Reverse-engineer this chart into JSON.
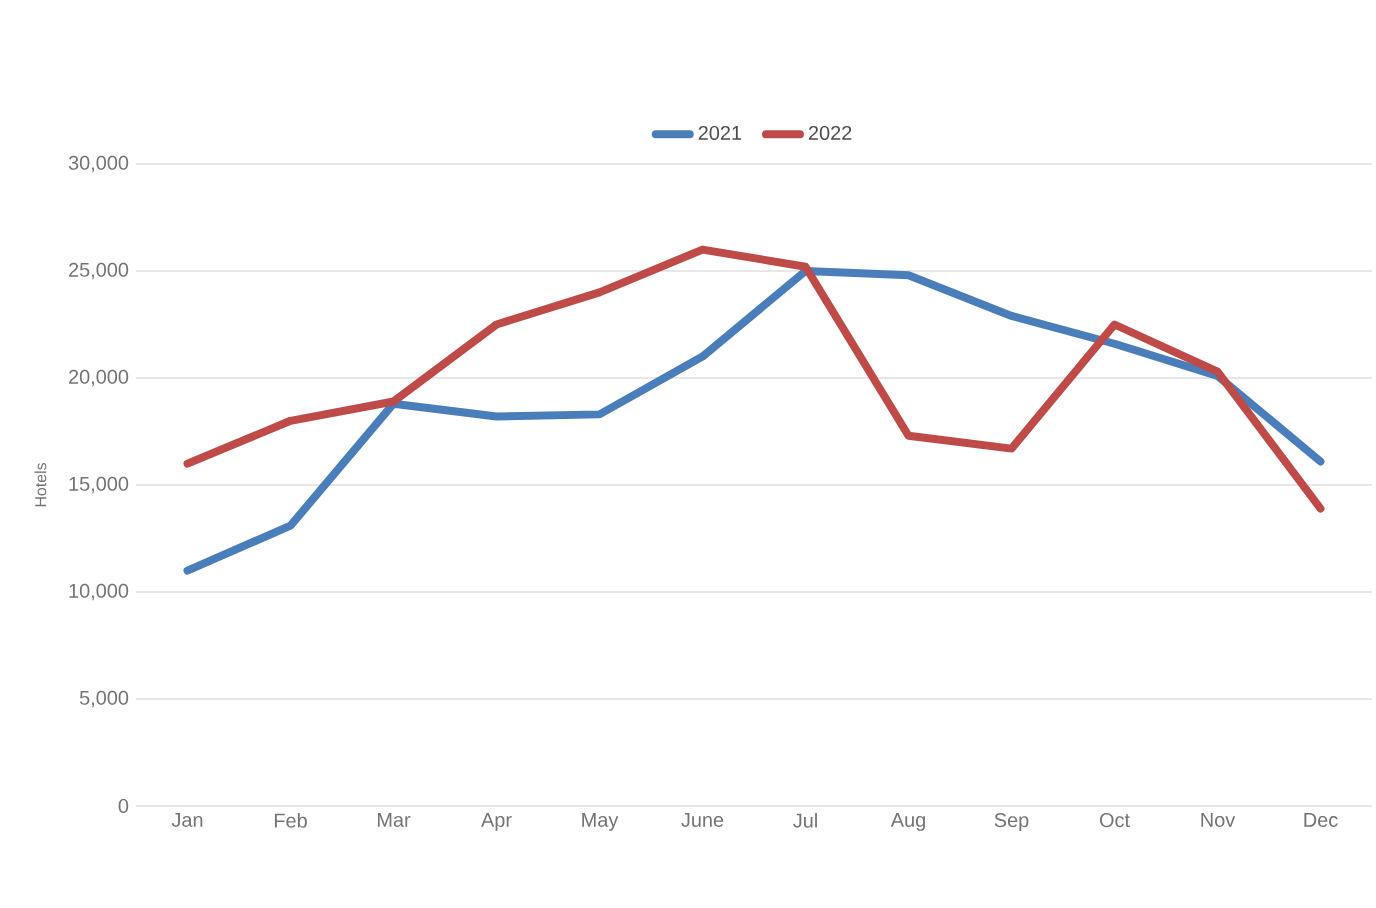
{
  "chart_data": {
    "type": "line",
    "ylabel": "Hotels",
    "categories": [
      "Jan",
      "Feb",
      "Mar",
      "Apr",
      "May",
      "June",
      "Jul",
      "Aug",
      "Sep",
      "Oct",
      "Nov",
      "Dec"
    ],
    "series": [
      {
        "name": "2021",
        "color": "#4a7ebb",
        "values": [
          11000,
          13100,
          18800,
          18200,
          18300,
          21000,
          25000,
          24800,
          22900,
          21600,
          20100,
          16100
        ]
      },
      {
        "name": "2022",
        "color": "#be4b48",
        "values": [
          16000,
          18000,
          18900,
          22500,
          24000,
          26000,
          25200,
          17300,
          16700,
          22500,
          20300,
          13900
        ]
      }
    ],
    "ylim": [
      0,
      30000
    ],
    "yticks": [
      0,
      {
        "value": 5000,
        "label": "5,000"
      },
      {
        "value": 10000,
        "label": "10,000"
      },
      {
        "value": 15000,
        "label": "15,000"
      },
      {
        "value": 20000,
        "label": "20,000"
      },
      {
        "value": 25000,
        "label": "25,000"
      },
      {
        "value": 30000,
        "label": "30,000"
      }
    ],
    "grid": "y",
    "legend": "top",
    "marker": "none",
    "line_style": "solid"
  }
}
